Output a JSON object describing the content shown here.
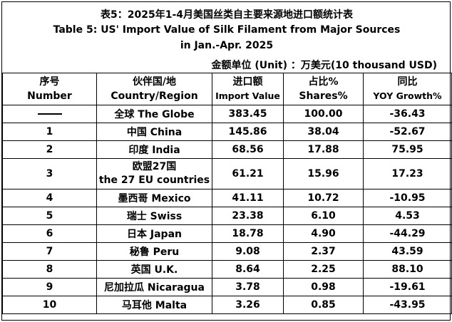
{
  "title": {
    "cn": "表5：2025年1-4月美国丝类自主要来源地进口额统计表",
    "en_line1": "Table 5: US' Import Value of Silk Filament from Major Sources",
    "en_line2": "in Jan.-Apr. 2025"
  },
  "unit": "金额单位 (Unit) ：万美元(10 thousand USD)",
  "headers": [
    {
      "cn": "序号",
      "en": "Number"
    },
    {
      "cn": "伙伴国/地",
      "en": "Country/Region"
    },
    {
      "cn": "进口额",
      "en": "Import Value"
    },
    {
      "cn": "占比%",
      "en": "Shares%"
    },
    {
      "cn": "同比",
      "en": "YOY Growth%"
    }
  ],
  "rows": [
    {
      "number": "——",
      "region": "全球 The Globe",
      "value": "383.45",
      "share": "100.00",
      "yoy": "-36.43"
    },
    {
      "number": "1",
      "region": "中国 China",
      "value": "145.86",
      "share": "38.04",
      "yoy": "-52.67"
    },
    {
      "number": "2",
      "region": "印度 India",
      "value": "68.56",
      "share": "17.88",
      "yoy": "75.95"
    },
    {
      "number": "3",
      "region": "欧盟27国",
      "region2": "the 27 EU countries",
      "value": "61.21",
      "share": "15.96",
      "yoy": "17.23"
    },
    {
      "number": "4",
      "region": "墨西哥 Mexico",
      "value": "41.11",
      "share": "10.72",
      "yoy": "-10.95"
    },
    {
      "number": "5",
      "region": "瑞士 Swiss",
      "value": "23.38",
      "share": "6.10",
      "yoy": "4.53"
    },
    {
      "number": "6",
      "region": "日本 Japan",
      "value": "18.78",
      "share": "4.90",
      "yoy": "-44.29"
    },
    {
      "number": "7",
      "region": "秘鲁 Peru",
      "value": "9.08",
      "share": "2.37",
      "yoy": "43.59"
    },
    {
      "number": "8",
      "region": "英国 U.K.",
      "value": "8.64",
      "share": "2.25",
      "yoy": "88.10"
    },
    {
      "number": "9",
      "region": "尼加拉瓜 Nicaragua",
      "value": "3.78",
      "share": "0.98",
      "yoy": "-19.61"
    },
    {
      "number": "10",
      "region": "马耳他 Malta",
      "value": "3.26",
      "share": "0.85",
      "yoy": "-43.95"
    }
  ]
}
